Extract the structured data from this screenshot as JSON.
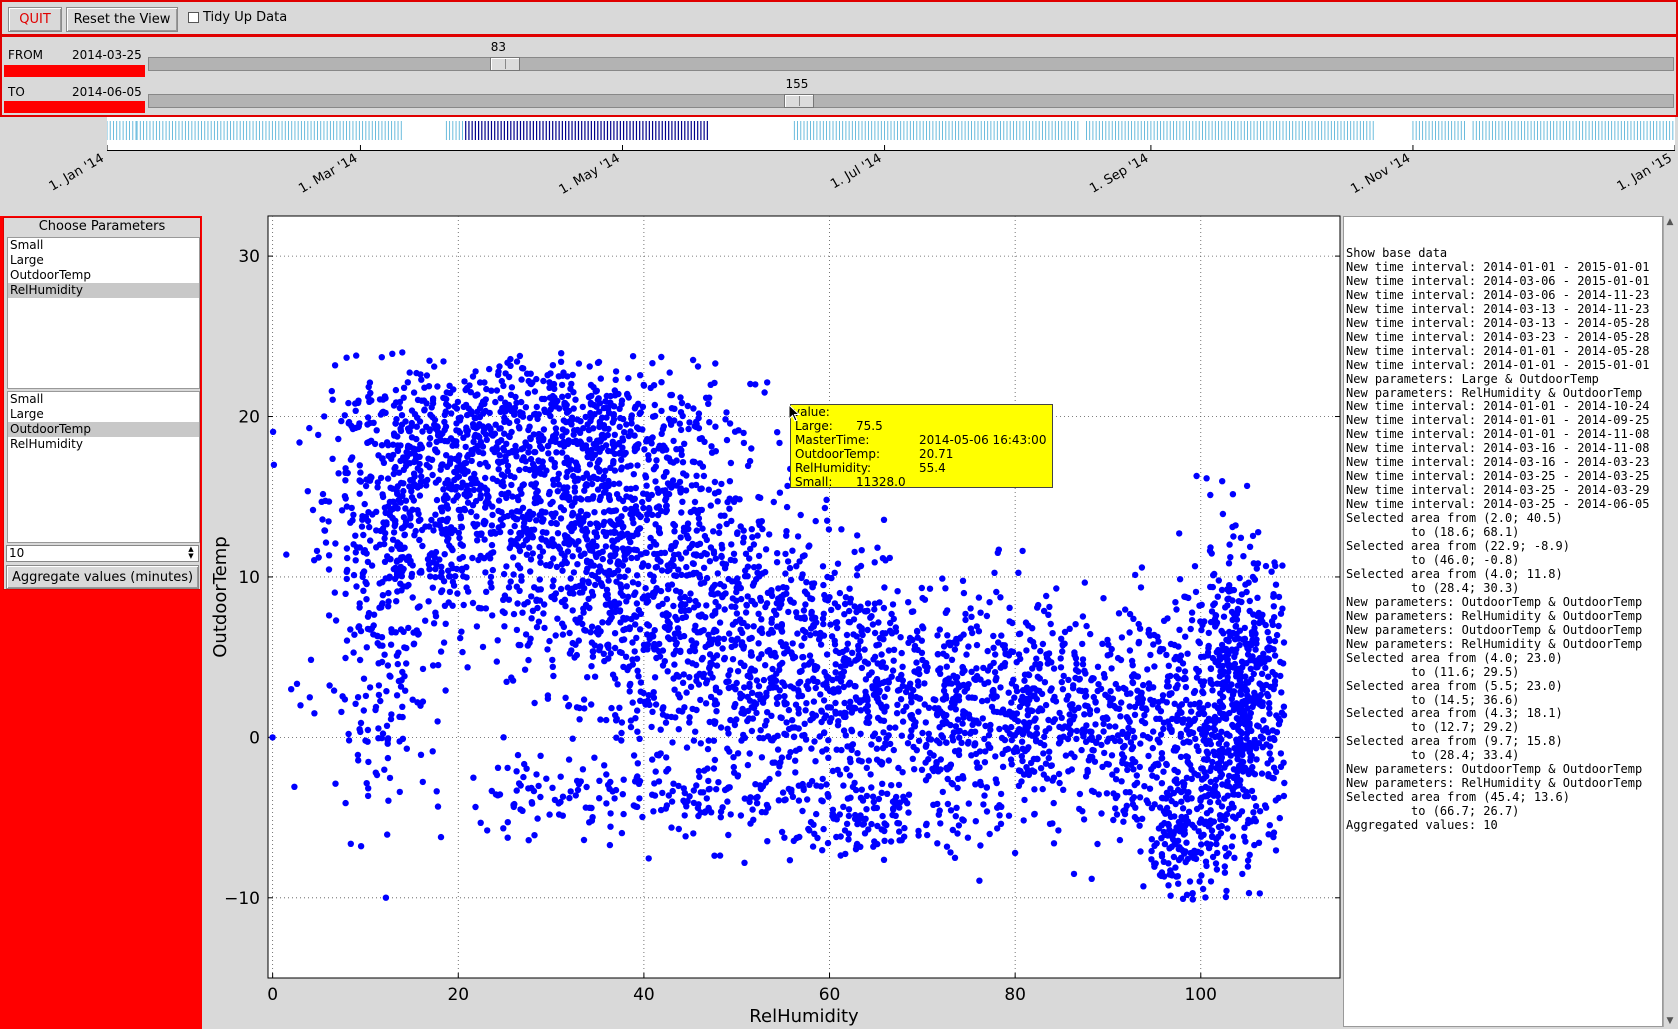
{
  "toolbar": {
    "quit_label": "QUIT",
    "reset_label": "Reset the View",
    "tidy_label": "Tidy Up Data",
    "tidy_checked": false
  },
  "time_selection": {
    "from_label": "FROM",
    "from_date": "2014-03-25",
    "from_slider_value": "83",
    "to_label": "TO",
    "to_date": "2014-06-05",
    "to_slider_value": "155",
    "slider_max": 365
  },
  "timeline": {
    "tick_labels": [
      "1. Jan '14",
      "1. Mar '14",
      "1. May '14",
      "1. Jul '14",
      "1. Sep '14",
      "1. Nov '14",
      "1. Jan '15"
    ],
    "tick_days": [
      0,
      59,
      120,
      181,
      243,
      304,
      365
    ],
    "data_ranges_days": [
      [
        0,
        7
      ],
      [
        7,
        69
      ],
      [
        79,
        140
      ],
      [
        160,
        226
      ],
      [
        228,
        295
      ],
      [
        304,
        316
      ],
      [
        318,
        383
      ]
    ],
    "selected_range_days": [
      83,
      155
    ],
    "colors": {
      "selected": "#00008b",
      "unselected": "#5ab4d9"
    }
  },
  "params": {
    "title": "Choose Parameters",
    "list_x": [
      "Small",
      "Large",
      "OutdoorTemp",
      "RelHumidity"
    ],
    "selected_x": "RelHumidity",
    "list_y": [
      "Small",
      "Large",
      "OutdoorTemp",
      "RelHumidity"
    ],
    "selected_y": "OutdoorTemp",
    "aggregate_value": "10",
    "aggregate_label": "Aggregate values (minutes)"
  },
  "chart_data": {
    "type": "scatter",
    "xlabel": "RelHumidity",
    "ylabel": "OutdoorTemp",
    "xlim": [
      -0.5,
      115
    ],
    "ylim": [
      -15,
      32.5
    ],
    "xticks": [
      0,
      20,
      40,
      60,
      80,
      100
    ],
    "yticks": [
      -10,
      0,
      10,
      20,
      30
    ],
    "grid": true,
    "color": "#0000ff",
    "clusters": [
      {
        "cx": 20,
        "cy": 15,
        "sx": 7,
        "sy": 4,
        "n": 650
      },
      {
        "cx": 36,
        "cy": 13,
        "sx": 7,
        "sy": 5,
        "n": 900
      },
      {
        "cx": 30,
        "cy": 20,
        "sx": 9,
        "sy": 2,
        "n": 320
      },
      {
        "cx": 50,
        "cy": 6,
        "sx": 9,
        "sy": 4.5,
        "n": 800
      },
      {
        "cx": 70,
        "cy": 2,
        "sx": 10,
        "sy": 3.5,
        "n": 700
      },
      {
        "cx": 92,
        "cy": 1,
        "sx": 9,
        "sy": 3.5,
        "n": 650
      },
      {
        "cx": 104,
        "cy": 2,
        "sx": 3,
        "sy": 5,
        "n": 600
      },
      {
        "cx": 98,
        "cy": -6,
        "sx": 2,
        "sy": 2.5,
        "n": 180
      },
      {
        "cx": 38,
        "cy": -4,
        "sx": 12,
        "sy": 1.2,
        "n": 170
      },
      {
        "cx": 65,
        "cy": -5,
        "sx": 6,
        "sy": 1.2,
        "n": 120
      },
      {
        "cx": 12,
        "cy": 10,
        "sx": 3,
        "sy": 7,
        "n": 300
      }
    ],
    "extra_points": [
      [
        0,
        0
      ],
      [
        2,
        3
      ],
      [
        3,
        2
      ],
      [
        4,
        2.5
      ],
      [
        4.5,
        1.5
      ],
      [
        10,
        -0.2
      ],
      [
        9,
        23.8
      ],
      [
        27,
        23
      ],
      [
        33,
        23.3
      ],
      [
        52,
        22
      ],
      [
        53,
        21.5
      ],
      [
        104,
        8
      ],
      [
        107,
        7
      ],
      [
        108,
        6
      ]
    ],
    "tooltip": {
      "header": "value:",
      "rows": [
        [
          "Large:",
          "75.5"
        ],
        [
          "MasterTime:",
          "2014-05-06 16:43:00"
        ],
        [
          "OutdoorTemp:",
          "20.71"
        ],
        [
          "RelHumidity:",
          "55.4"
        ],
        [
          "Small:",
          "11328.0"
        ]
      ]
    }
  },
  "log": [
    "Show base data",
    "New time interval: 2014-01-01 - 2015-01-01",
    "New time interval: 2014-03-06 - 2015-01-01",
    "New time interval: 2014-03-06 - 2014-11-23",
    "New time interval: 2014-03-13 - 2014-11-23",
    "New time interval: 2014-03-13 - 2014-05-28",
    "New time interval: 2014-03-23 - 2014-05-28",
    "New time interval: 2014-01-01 - 2014-05-28",
    "New time interval: 2014-01-01 - 2015-01-01",
    "New parameters: Large & OutdoorTemp",
    "New parameters: RelHumidity & OutdoorTemp",
    "New time interval: 2014-01-01 - 2014-10-24",
    "New time interval: 2014-01-01 - 2014-09-25",
    "New time interval: 2014-01-01 - 2014-11-08",
    "New time interval: 2014-03-16 - 2014-11-08",
    "New time interval: 2014-03-16 - 2014-03-23",
    "New time interval: 2014-03-25 - 2014-03-25",
    "New time interval: 2014-03-25 - 2014-03-29",
    "New time interval: 2014-03-25 - 2014-06-05",
    "Selected area from (2.0; 40.5)",
    "         to (18.6; 68.1)",
    "Selected area from (22.9; -8.9)",
    "         to (46.0; -0.8)",
    "Selected area from (4.0; 11.8)",
    "         to (28.4; 30.3)",
    "New parameters: OutdoorTemp & OutdoorTemp",
    "New parameters: RelHumidity & OutdoorTemp",
    "New parameters: OutdoorTemp & OutdoorTemp",
    "New parameters: RelHumidity & OutdoorTemp",
    "Selected area from (4.0; 23.0)",
    "         to (11.6; 29.5)",
    "Selected area from (5.5; 23.0)",
    "         to (14.5; 36.6)",
    "Selected area from (4.3; 18.1)",
    "         to (12.7; 29.2)",
    "Selected area from (9.7; 15.8)",
    "         to (28.4; 33.4)",
    "New parameters: OutdoorTemp & OutdoorTemp",
    "New parameters: RelHumidity & OutdoorTemp",
    "Selected area from (45.4; 13.6)",
    "         to (66.7; 26.7)",
    "Aggregated values: 10"
  ]
}
